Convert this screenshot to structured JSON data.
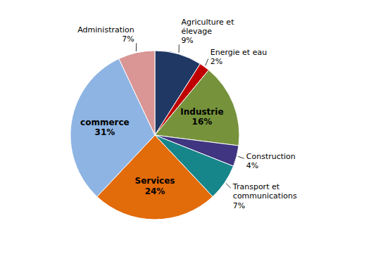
{
  "chart_data": {
    "type": "pie",
    "categories": [
      "Agriculture et\nélevage",
      "Energie et eau",
      "Industrie",
      "Construction",
      "Transport et\ncommunications",
      "Services",
      "commerce",
      "Administration"
    ],
    "values": [
      9,
      2,
      16,
      4,
      7,
      24,
      31,
      7
    ],
    "value_labels": [
      "9%",
      "2%",
      "16%",
      "4%",
      "7%",
      "24%",
      "31%",
      "7%"
    ],
    "colors": [
      "#1F3864",
      "#C00000",
      "#76933C",
      "#403580",
      "#17868B",
      "#E26B0A",
      "#8EB4E3",
      "#D99694"
    ],
    "data_labels": true
  }
}
